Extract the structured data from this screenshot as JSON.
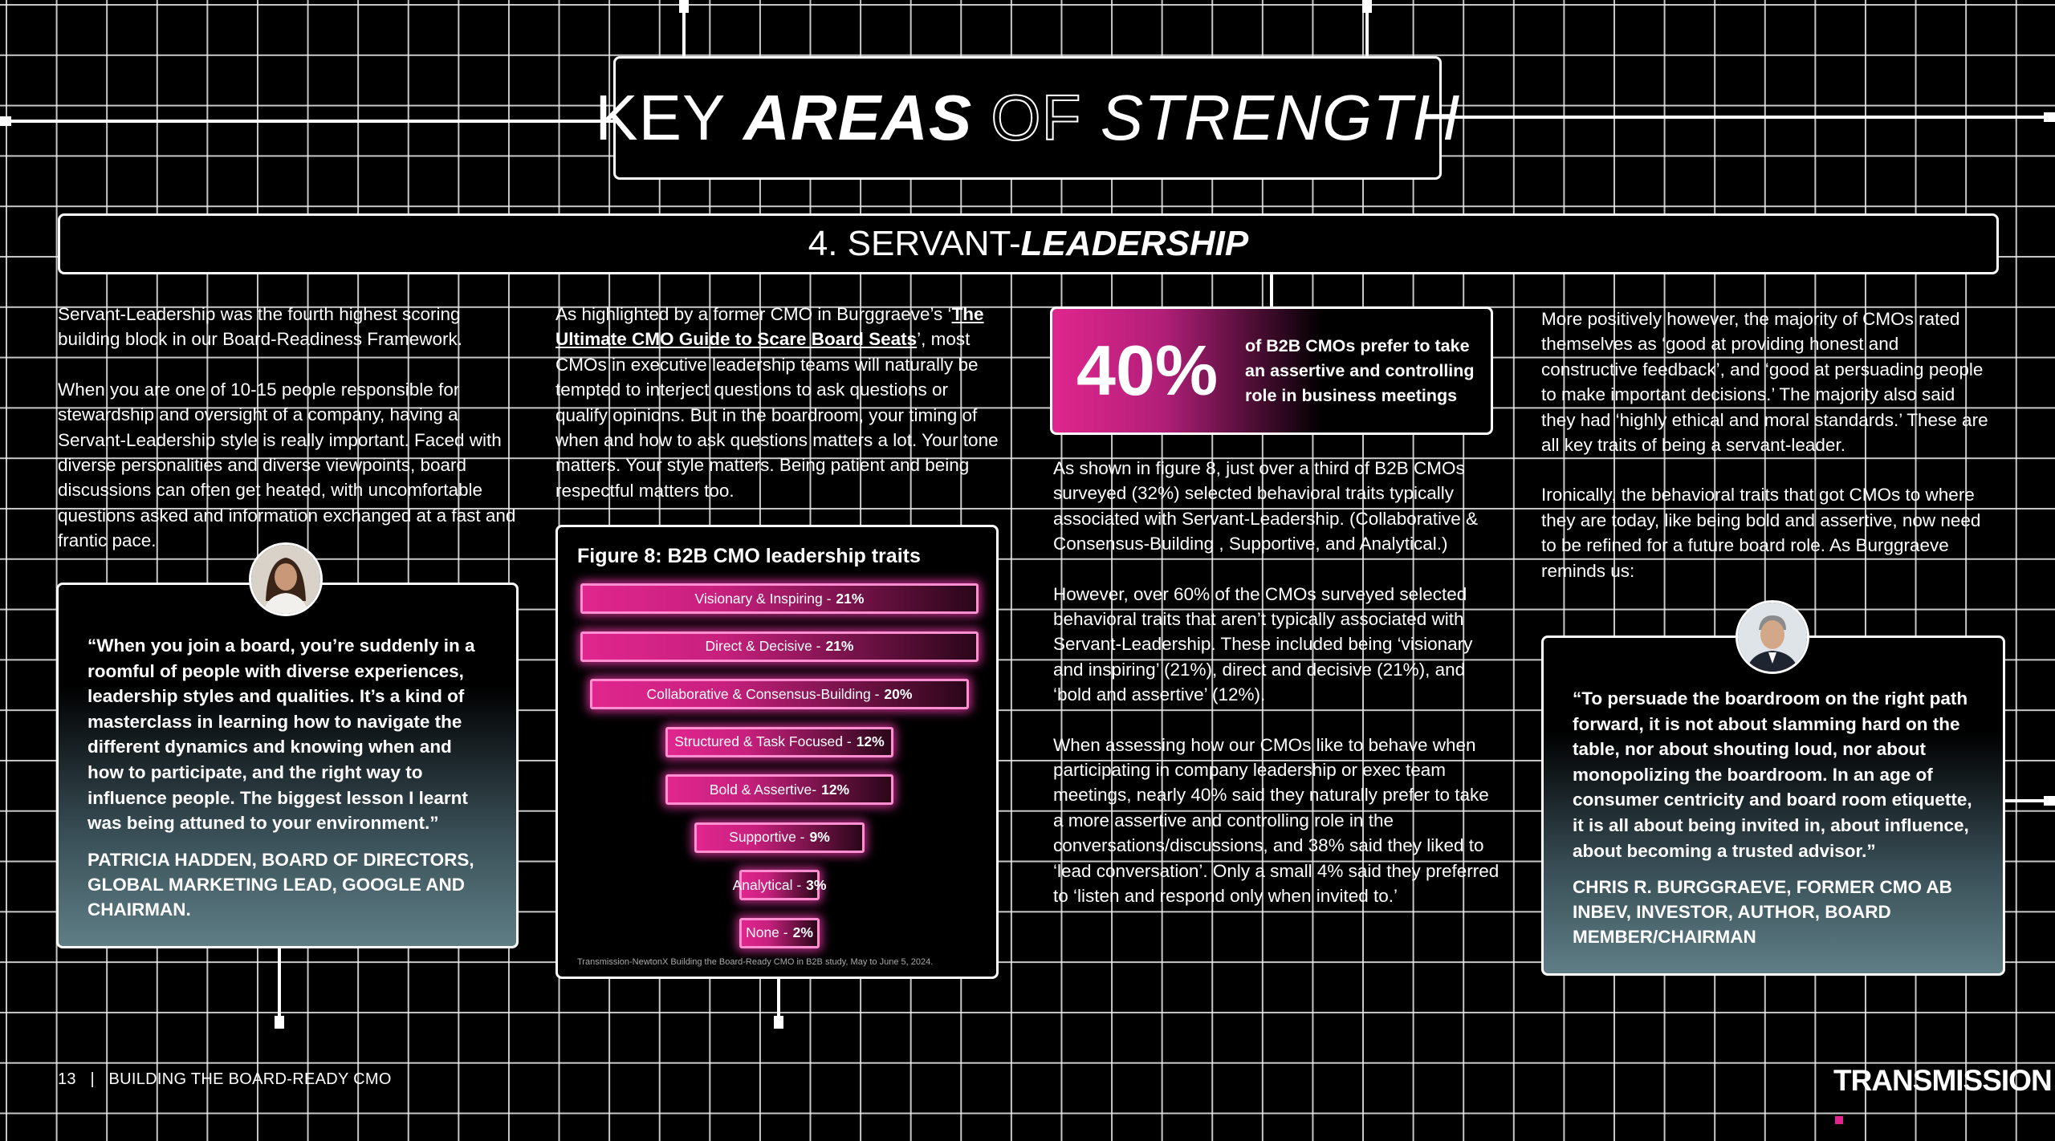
{
  "title": {
    "key": "KEY",
    "areas": "AREAS",
    "of": "OF",
    "strength": "STRENGTH"
  },
  "section": {
    "number": "4. SERVANT-",
    "emphasis": "LEADERSHIP"
  },
  "column1": {
    "p1": "Servant-Leadership was the fourth highest scoring building block in our Board-Readiness Framework.",
    "p2": "When you are one of 10-15 people responsible for stewardship and oversight of a company, having a Servant-Leadership style is really important. Faced with diverse personalities and diverse viewpoints, board discussions can often get heated, with uncomfortable questions asked and information exchanged at a fast and frantic pace."
  },
  "quote1": {
    "text": "“When you join a board, you’re suddenly in a roomful of people with diverse experiences, leadership styles and qualities. It’s a kind of masterclass in learning how to navigate the different dynamics and knowing when and how to participate, and the right way to influence people. The biggest lesson I learnt was being attuned to your environment.”",
    "attribution": "PATRICIA HADDEN, BOARD OF DIRECTORS, GLOBAL MARKETING LEAD, GOOGLE AND CHAIRMAN."
  },
  "column2": {
    "intro": "As highlighted by a former CMO in Burggraeve’s ‘",
    "link": "The Ultimate CMO Guide to Scare Board Seats",
    "rest": "’, most CMOs in executive leadership teams will naturally be tempted to interject questions to ask questions or qualify opinions. But in the boardroom, your timing of when and how to ask questions matters a lot. Your tone matters. Your style matters. Being patient and being respectful matters too."
  },
  "figure": {
    "title": "Figure 8: B2B CMO leadership traits",
    "source": "Transmission-NewtonX Building the Board-Ready CMO in B2B study, May to June 5, 2024."
  },
  "chart_data": {
    "type": "bar",
    "title": "Figure 8: B2B CMO leadership traits",
    "categories": [
      "Visionary & Inspiring",
      "Direct & Decisive",
      "Collaborative & Consensus-Building",
      "Structured & Task Focused",
      "Bold & Assertive",
      "Supportive",
      "Analytical",
      "None"
    ],
    "values": [
      21,
      21,
      20,
      12,
      12,
      9,
      3,
      2
    ],
    "labels": [
      "Visionary & Inspiring -",
      "Direct & Decisive -",
      "Collaborative & Consensus-Building -",
      "Structured & Task Focused -",
      "Bold & Assertive-",
      "Supportive -",
      "Analytical -",
      "None -"
    ],
    "value_labels": [
      "21%",
      "21%",
      "20%",
      "12%",
      "12%",
      "9%",
      "3%",
      "2%"
    ],
    "xlabel": "",
    "ylabel": "",
    "color": "#e0268e"
  },
  "stat": {
    "number": "40%",
    "text": "of B2B CMOs prefer to take an assertive and controlling role in business meetings"
  },
  "column3": {
    "p1": "As shown in figure 8, just over a third of B2B CMOs surveyed (32%) selected behavioral traits typically associated with Servant-Leadership. (Collaborative & Consensus-Building , Supportive, and Analytical.)",
    "p2": "However, over 60% of the CMOs surveyed selected behavioral traits that aren’t typically associated with Servant-Leadership. These included being ‘visionary and inspiring’ (21%), direct and decisive (21%), and ‘bold and assertive’ (12%).",
    "p3": "When assessing how our CMOs like to behave when participating in company leadership or exec team meetings, nearly 40% said they naturally prefer to take a more assertive and controlling role in the conversations/discussions, and 38% said they liked to ‘lead conversation’. Only a small 4% said they preferred to ‘listen and respond only when invited to.’"
  },
  "column4": {
    "p1": "More positively however, the majority of CMOs rated themselves as ‘good at providing honest and constructive feedback’, and ‘good at persuading people to make important decisions.’ The majority also said they had ‘highly ethical and moral standards.’ These are all key traits of being a servant-leader.",
    "p2": "Ironically, the behavioral traits that got CMOs to where they are today, like being bold and assertive, now need to be refined for a future board role. As Burggraeve reminds us:"
  },
  "quote2": {
    "text": "“To persuade the boardroom on the right path forward, it is not about slamming hard on the table, nor about shouting loud, nor about monopolizing the boardroom. In an age of consumer centricity and board room etiquette, it is all about being invited in, about influence, about becoming a trusted advisor.”",
    "attribution": "CHRIS R. BURGGRAEVE, FORMER CMO AB INBEV, INVESTOR, AUTHOR, BOARD MEMBER/CHAIRMAN"
  },
  "footer": {
    "page": "13",
    "separator": "|",
    "doc": "BUILDING THE BOARD-READY CMO",
    "brand": "TRANSMISSION"
  }
}
